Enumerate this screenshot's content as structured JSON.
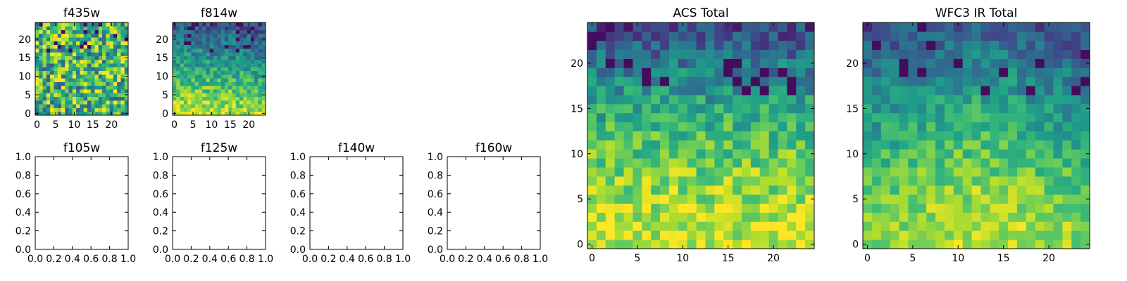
{
  "chart_data": [
    {
      "type": "heatmap",
      "title": "f435w",
      "xlim": [
        -0.5,
        24.5
      ],
      "ylim": [
        -0.5,
        24.5
      ],
      "xticks": [
        0,
        5,
        10,
        15,
        20
      ],
      "yticks": [
        0,
        5,
        10,
        15,
        20
      ],
      "xtick_labels": [
        "0",
        "5",
        "10",
        "15",
        "20"
      ],
      "ytick_labels": [
        "0",
        "5",
        "10",
        "15",
        "20"
      ],
      "grid_size": [
        25,
        25
      ],
      "colormap": "viridis",
      "pattern": "noisy-uniform-bright",
      "seed": 11
    },
    {
      "type": "heatmap",
      "title": "f814w",
      "xlim": [
        -0.5,
        24.5
      ],
      "ylim": [
        -0.5,
        24.5
      ],
      "xticks": [
        0,
        5,
        10,
        15,
        20
      ],
      "yticks": [
        0,
        5,
        10,
        15,
        20
      ],
      "xtick_labels": [
        "0",
        "5",
        "10",
        "15",
        "20"
      ],
      "ytick_labels": [
        "0",
        "5",
        "10",
        "15",
        "20"
      ],
      "grid_size": [
        25,
        25
      ],
      "colormap": "viridis",
      "pattern": "bright-bottom-left-fading-up",
      "seed": 23
    },
    {
      "type": "heatmap",
      "title": "f105w",
      "empty": true,
      "xlim": [
        0,
        1
      ],
      "ylim": [
        0,
        1
      ],
      "xticks": [
        0,
        0.2,
        0.4,
        0.6,
        0.8,
        1.0
      ],
      "yticks": [
        0,
        0.2,
        0.4,
        0.6,
        0.8,
        1.0
      ],
      "xtick_labels": [
        "0.0",
        "0.2",
        "0.4",
        "0.6",
        "0.8",
        "1.0"
      ],
      "ytick_labels": [
        "0.0",
        "0.2",
        "0.4",
        "0.6",
        "0.8",
        "1.0"
      ]
    },
    {
      "type": "heatmap",
      "title": "f125w",
      "empty": true,
      "xlim": [
        0,
        1
      ],
      "ylim": [
        0,
        1
      ],
      "xticks": [
        0,
        0.2,
        0.4,
        0.6,
        0.8,
        1.0
      ],
      "yticks": [
        0,
        0.2,
        0.4,
        0.6,
        0.8,
        1.0
      ],
      "xtick_labels": [
        "0.0",
        "0.2",
        "0.4",
        "0.6",
        "0.8",
        "1.0"
      ],
      "ytick_labels": [
        "0.0",
        "0.2",
        "0.4",
        "0.6",
        "0.8",
        "1.0"
      ]
    },
    {
      "type": "heatmap",
      "title": "f140w",
      "empty": true,
      "xlim": [
        0,
        1
      ],
      "ylim": [
        0,
        1
      ],
      "xticks": [
        0,
        0.2,
        0.4,
        0.6,
        0.8,
        1.0
      ],
      "yticks": [
        0,
        0.2,
        0.4,
        0.6,
        0.8,
        1.0
      ],
      "xtick_labels": [
        "0.0",
        "0.2",
        "0.4",
        "0.6",
        "0.8",
        "1.0"
      ],
      "ytick_labels": [
        "0.0",
        "0.2",
        "0.4",
        "0.6",
        "0.8",
        "1.0"
      ]
    },
    {
      "type": "heatmap",
      "title": "f160w",
      "empty": true,
      "xlim": [
        0,
        1
      ],
      "ylim": [
        0,
        1
      ],
      "xticks": [
        0,
        0.2,
        0.4,
        0.6,
        0.8,
        1.0
      ],
      "yticks": [
        0,
        0.2,
        0.4,
        0.6,
        0.8,
        1.0
      ],
      "xtick_labels": [
        "0.0",
        "0.2",
        "0.4",
        "0.6",
        "0.8",
        "1.0"
      ],
      "ytick_labels": [
        "0.0",
        "0.2",
        "0.4",
        "0.6",
        "0.8",
        "1.0"
      ]
    },
    {
      "type": "heatmap",
      "title": "ACS Total",
      "xlim": [
        -0.5,
        24.5
      ],
      "ylim": [
        -0.5,
        24.5
      ],
      "xticks": [
        0,
        5,
        10,
        15,
        20
      ],
      "yticks": [
        0,
        5,
        10,
        15,
        20
      ],
      "xtick_labels": [
        "0",
        "5",
        "10",
        "15",
        "20"
      ],
      "ytick_labels": [
        "0",
        "5",
        "10",
        "15",
        "20"
      ],
      "grid_size": [
        25,
        25
      ],
      "colormap": "viridis",
      "pattern": "bright-bottom-dark-top",
      "seed": 37
    },
    {
      "type": "heatmap",
      "title": "WFC3 IR Total",
      "xlim": [
        -0.5,
        24.5
      ],
      "ylim": [
        -0.5,
        24.5
      ],
      "xticks": [
        0,
        5,
        10,
        15,
        20
      ],
      "yticks": [
        0,
        5,
        10,
        15,
        20
      ],
      "xtick_labels": [
        "0",
        "5",
        "10",
        "15",
        "20"
      ],
      "ytick_labels": [
        "0",
        "5",
        "10",
        "15",
        "20"
      ],
      "grid_size": [
        25,
        25
      ],
      "colormap": "viridis",
      "pattern": "bright-center-bottom-dark-top",
      "seed": 53
    }
  ]
}
